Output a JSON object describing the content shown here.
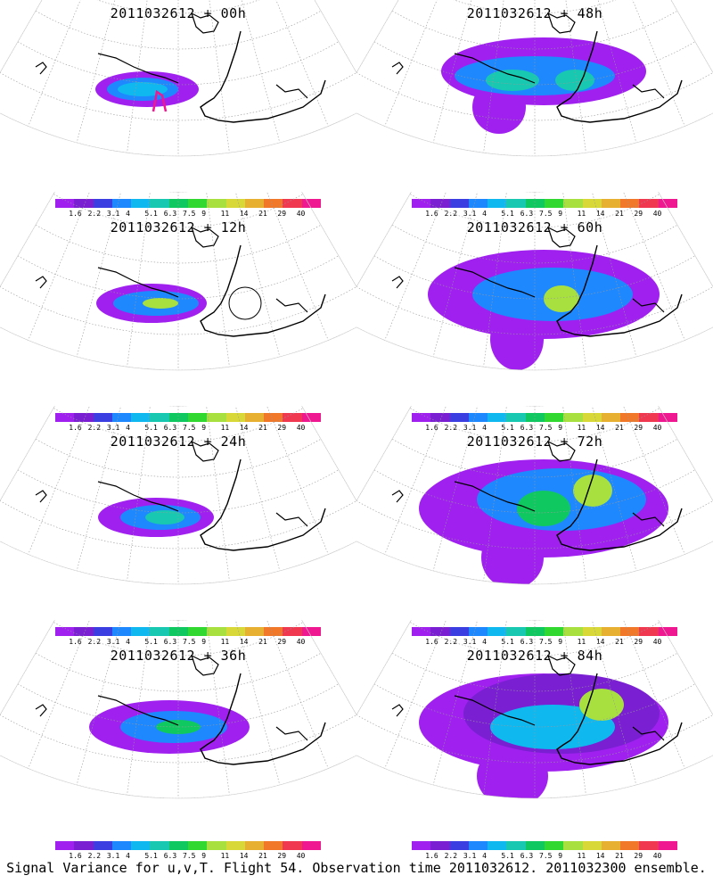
{
  "panels": [
    {
      "title": "2011032612 + 00h"
    },
    {
      "title": "2011032612 + 48h"
    },
    {
      "title": "2011032612 + 12h"
    },
    {
      "title": "2011032612 + 60h"
    },
    {
      "title": "2011032612 + 24h"
    },
    {
      "title": "2011032612 + 72h"
    },
    {
      "title": "2011032612 + 36h"
    },
    {
      "title": "2011032612 + 84h"
    }
  ],
  "colorbar": {
    "labels": [
      "1.6",
      "2.2",
      "3.1",
      "4",
      "5.1",
      "6.3",
      "7.5",
      "9",
      "11",
      "14",
      "21",
      "29",
      "40"
    ],
    "colors": [
      "#a020f0",
      "#7a1fd2",
      "#3b3ee0",
      "#1e88ff",
      "#10b8f0",
      "#18c8b0",
      "#10c860",
      "#30d830",
      "#a8e040",
      "#d8d838",
      "#e8b030",
      "#f07828",
      "#f03850",
      "#f01890"
    ]
  },
  "footer": "Signal Variance for u,v,T. Flight 54. Observation time 2011032612. 2011032300 ensemble."
}
